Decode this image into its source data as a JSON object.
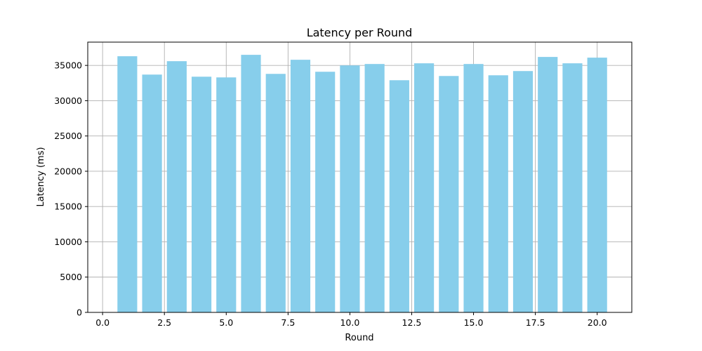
{
  "chart_data": {
    "type": "bar",
    "title": "Latency per Round",
    "xlabel": "Round",
    "ylabel": "Latency (ms)",
    "x": [
      1,
      2,
      3,
      4,
      5,
      6,
      7,
      8,
      9,
      10,
      11,
      12,
      13,
      14,
      15,
      16,
      17,
      18,
      19,
      20
    ],
    "values": [
      36300,
      33700,
      35600,
      33400,
      33300,
      36500,
      33800,
      35800,
      34100,
      35000,
      35200,
      32900,
      35300,
      33500,
      35200,
      33600,
      34200,
      36200,
      35300,
      36100
    ],
    "xlim": [
      -0.6,
      21.4
    ],
    "ylim": [
      0,
      38300
    ],
    "xticks": [
      0.0,
      2.5,
      5.0,
      7.5,
      10.0,
      12.5,
      15.0,
      17.5,
      20.0
    ],
    "xtick_labels": [
      "0.0",
      "2.5",
      "5.0",
      "7.5",
      "10.0",
      "12.5",
      "15.0",
      "17.5",
      "20.0"
    ],
    "yticks": [
      0,
      5000,
      10000,
      15000,
      20000,
      25000,
      30000,
      35000
    ],
    "ytick_labels": [
      "0",
      "5000",
      "10000",
      "15000",
      "20000",
      "25000",
      "30000",
      "35000"
    ],
    "grid": true,
    "bar_color": "#87ceeb",
    "grid_color": "#b0b0b0"
  }
}
